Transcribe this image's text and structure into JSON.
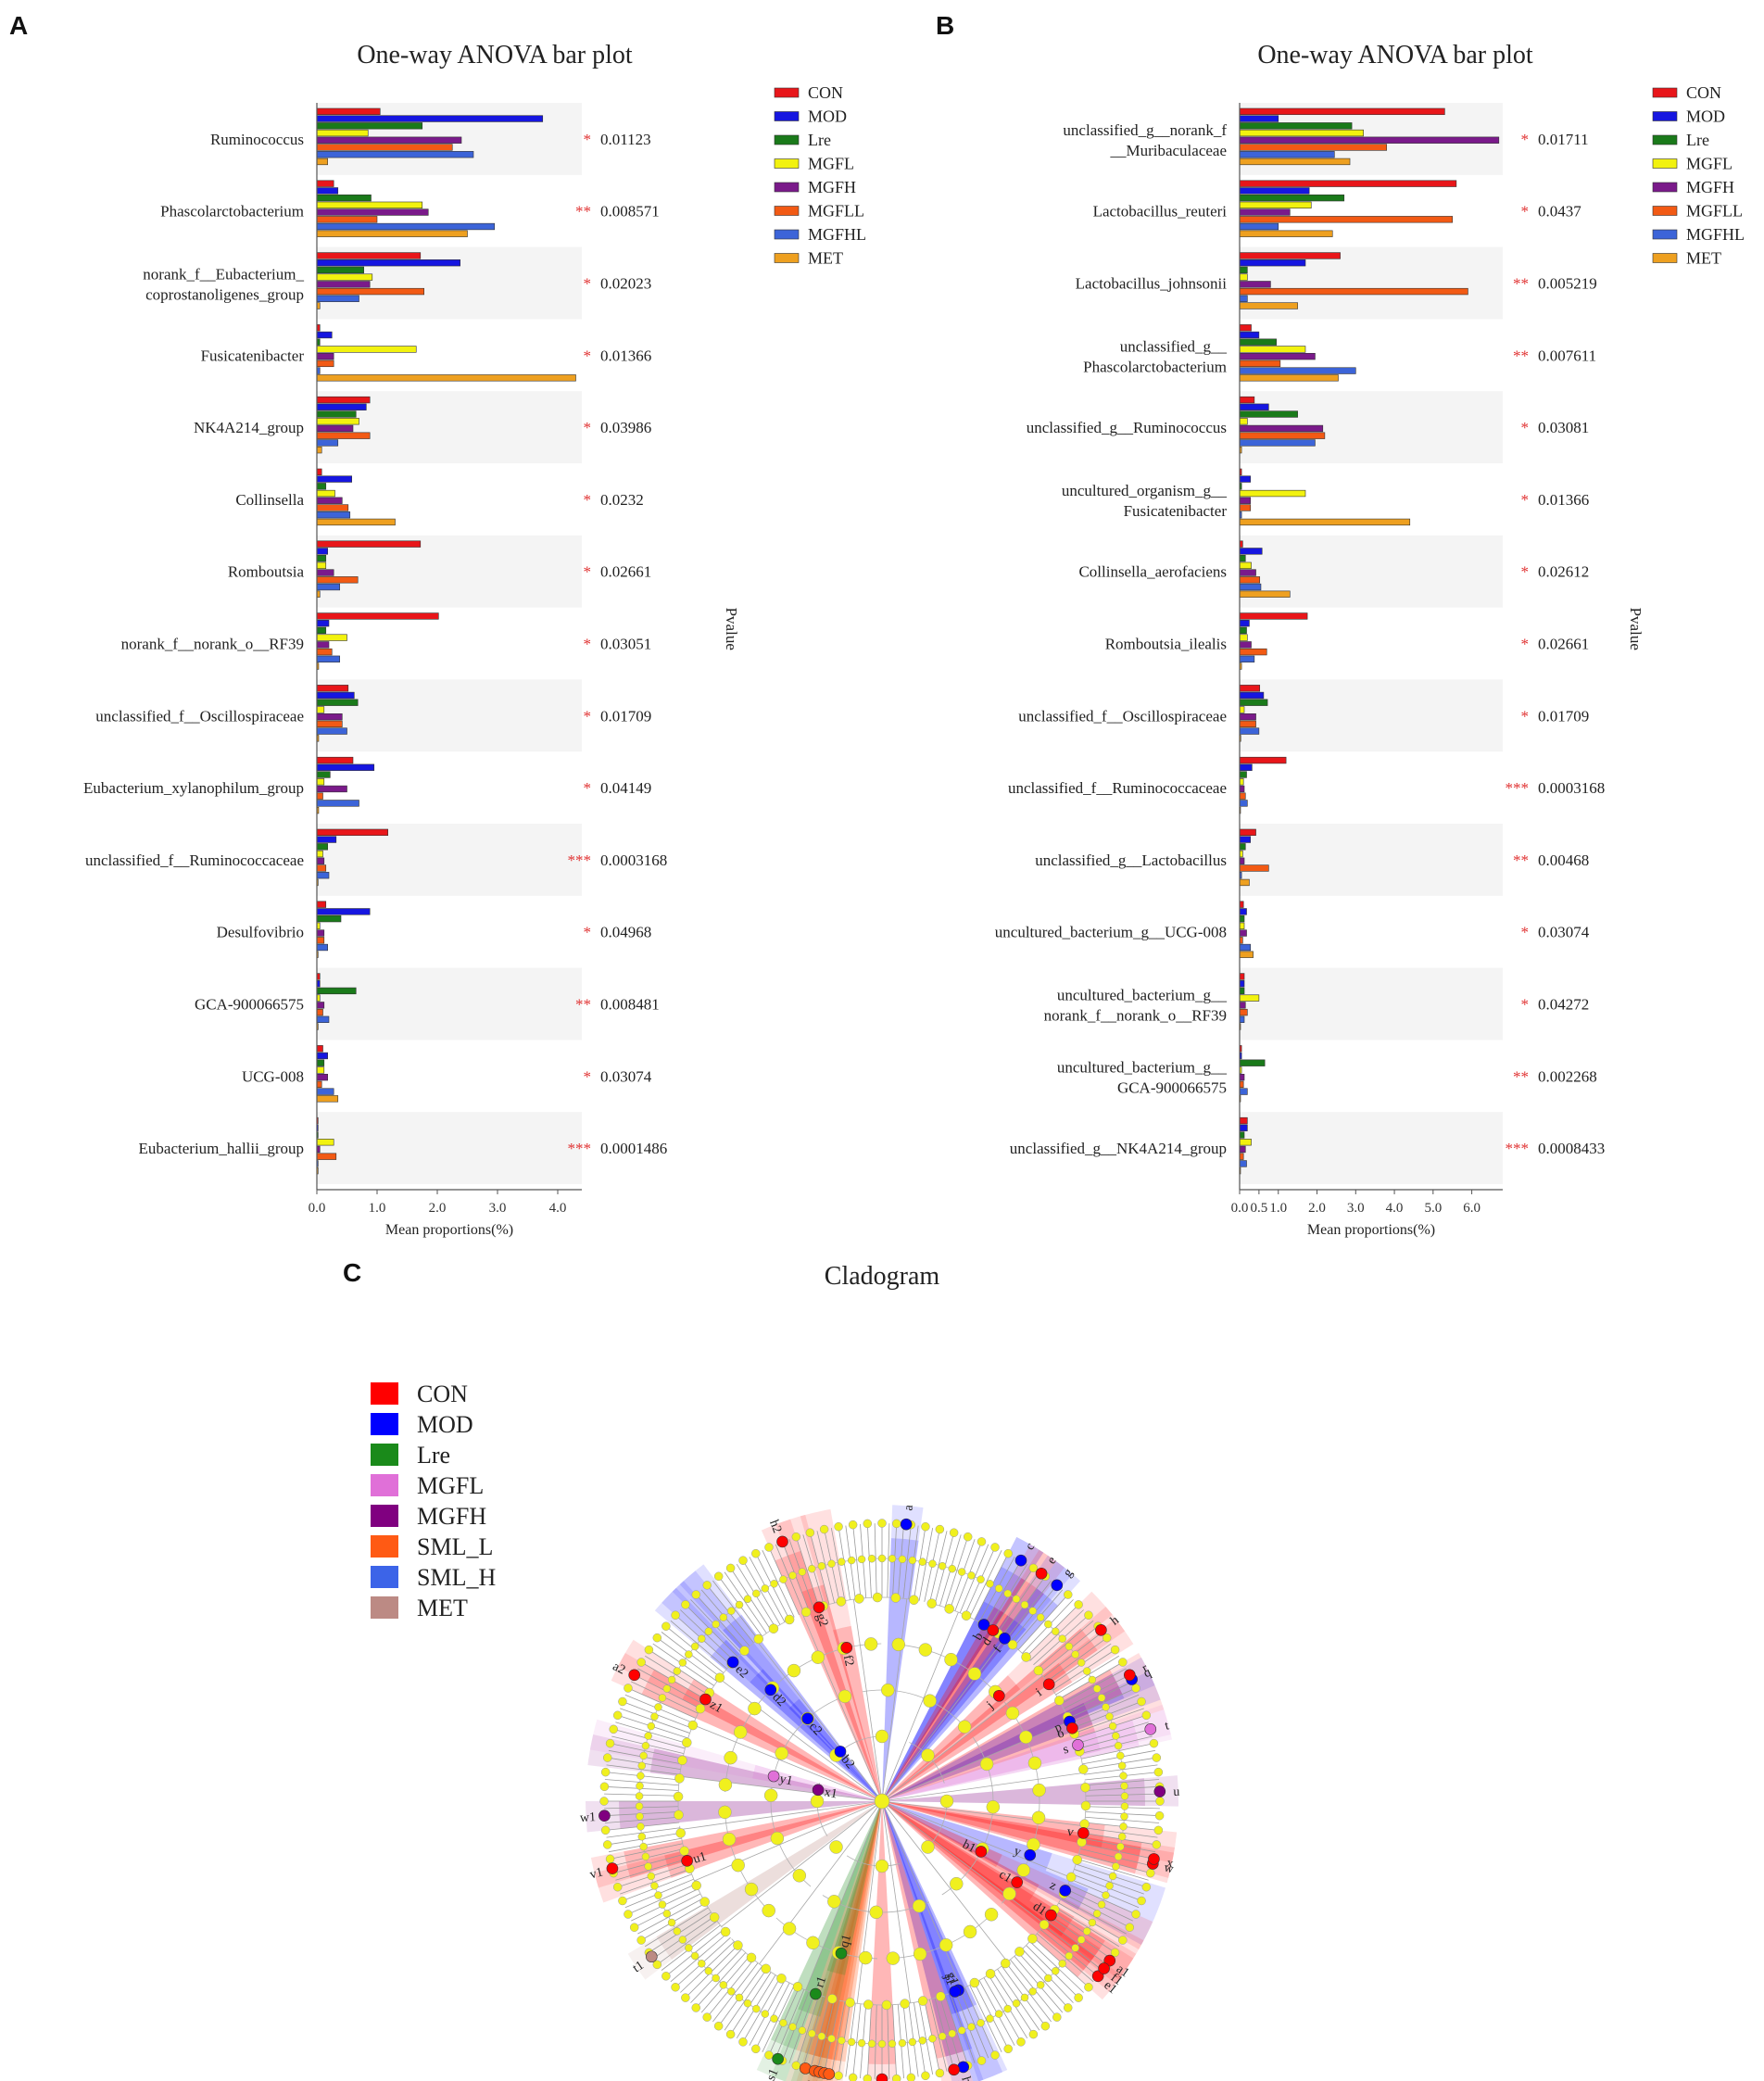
{
  "panel_labels": {
    "a": "A",
    "b": "B",
    "c": "C"
  },
  "legend_label": "Pvalue",
  "chart_data": [
    {
      "type": "bar",
      "orientation": "horizontal",
      "title": "One-way ANOVA bar plot",
      "xlabel": "Mean proportions(%)",
      "ylabel": "Pvalue",
      "xlim": [
        0,
        4.4
      ],
      "xticks": [
        0,
        1,
        2,
        3,
        4
      ],
      "xtick_labels": [
        "0.0",
        "1.0",
        "2.0",
        "3.0",
        "4.0"
      ],
      "legend_position": "top-right",
      "series_names": [
        "CON",
        "MOD",
        "Lre",
        "MGFL",
        "MGFH",
        "MGFLL",
        "MGFHL",
        "MET"
      ],
      "series_colors": [
        "#e8161a",
        "#1616e0",
        "#1a7a1a",
        "#f2f20f",
        "#7a1a8a",
        "#f25a14",
        "#3c64d8",
        "#eea020"
      ],
      "categories": [
        {
          "name": [
            "Ruminococcus"
          ],
          "values": [
            1.05,
            3.75,
            1.75,
            0.85,
            2.4,
            2.25,
            2.6,
            0.18
          ],
          "stars": "*",
          "pvalue": "0.01123"
        },
        {
          "name": [
            "Phascolarctobacterium"
          ],
          "values": [
            0.28,
            0.35,
            0.9,
            1.75,
            1.85,
            1.0,
            2.95,
            2.5
          ],
          "stars": "**",
          "pvalue": "0.008571"
        },
        {
          "name": [
            "norank_f__Eubacterium_",
            "coprostanoligenes_group"
          ],
          "values": [
            1.72,
            2.38,
            0.78,
            0.92,
            0.88,
            1.78,
            0.7,
            0.05
          ],
          "stars": "*",
          "pvalue": "0.02023"
        },
        {
          "name": [
            "Fusicatenibacter"
          ],
          "values": [
            0.05,
            0.25,
            0.05,
            1.65,
            0.28,
            0.28,
            0.05,
            4.3
          ],
          "stars": "*",
          "pvalue": "0.01366"
        },
        {
          "name": [
            "NK4A214_group"
          ],
          "values": [
            0.88,
            0.82,
            0.65,
            0.7,
            0.6,
            0.88,
            0.35,
            0.08
          ],
          "stars": "*",
          "pvalue": "0.03986"
        },
        {
          "name": [
            "Collinsella"
          ],
          "values": [
            0.08,
            0.58,
            0.15,
            0.3,
            0.42,
            0.52,
            0.55,
            1.3
          ],
          "stars": "*",
          "pvalue": "0.0232"
        },
        {
          "name": [
            "Romboutsia"
          ],
          "values": [
            1.72,
            0.18,
            0.15,
            0.15,
            0.28,
            0.68,
            0.38,
            0.05
          ],
          "stars": "*",
          "pvalue": "0.02661"
        },
        {
          "name": [
            "norank_f__norank_o__RF39"
          ],
          "values": [
            2.02,
            0.2,
            0.15,
            0.5,
            0.2,
            0.25,
            0.38,
            0.03
          ],
          "stars": "*",
          "pvalue": "0.03051"
        },
        {
          "name": [
            "unclassified_f__Oscillospiraceae"
          ],
          "values": [
            0.52,
            0.62,
            0.68,
            0.12,
            0.42,
            0.42,
            0.5,
            0.03
          ],
          "stars": "*",
          "pvalue": "0.01709"
        },
        {
          "name": [
            "Eubacterium_xylanophilum_group"
          ],
          "values": [
            0.6,
            0.95,
            0.22,
            0.12,
            0.5,
            0.1,
            0.7,
            0.03
          ],
          "stars": "*",
          "pvalue": "0.04149"
        },
        {
          "name": [
            "unclassified_f__Ruminococcaceae"
          ],
          "values": [
            1.18,
            0.32,
            0.18,
            0.1,
            0.12,
            0.15,
            0.2,
            0.02
          ],
          "stars": "***",
          "pvalue": "0.0003168"
        },
        {
          "name": [
            "Desulfovibrio"
          ],
          "values": [
            0.15,
            0.88,
            0.4,
            0.05,
            0.12,
            0.12,
            0.18,
            0.02
          ],
          "stars": "*",
          "pvalue": "0.04968"
        },
        {
          "name": [
            "GCA-900066575"
          ],
          "values": [
            0.05,
            0.05,
            0.65,
            0.05,
            0.12,
            0.1,
            0.2,
            0.02
          ],
          "stars": "**",
          "pvalue": "0.008481"
        },
        {
          "name": [
            "UCG-008"
          ],
          "values": [
            0.1,
            0.18,
            0.12,
            0.12,
            0.18,
            0.08,
            0.28,
            0.35
          ],
          "stars": "*",
          "pvalue": "0.03074"
        },
        {
          "name": [
            "Eubacterium_hallii_group"
          ],
          "values": [
            0.02,
            0.02,
            0.02,
            0.28,
            0.05,
            0.32,
            0.02,
            0.02
          ],
          "stars": "***",
          "pvalue": "0.0001486"
        }
      ]
    },
    {
      "type": "bar",
      "orientation": "horizontal",
      "title": "One-way ANOVA bar plot",
      "xlabel": "Mean proportions(%)",
      "ylabel": "Pvalue",
      "xlim": [
        0,
        6.8
      ],
      "xticks": [
        0,
        0.5,
        1,
        2,
        3,
        4,
        5,
        6
      ],
      "xtick_labels": [
        "0.0",
        "0.5",
        "1.0",
        "2.0",
        "3.0",
        "4.0",
        "5.0",
        "6.0"
      ],
      "legend_position": "top-right",
      "series_names": [
        "CON",
        "MOD",
        "Lre",
        "MGFL",
        "MGFH",
        "MGFLL",
        "MGFHL",
        "MET"
      ],
      "series_colors": [
        "#e8161a",
        "#1616e0",
        "#1a7a1a",
        "#f2f20f",
        "#7a1a8a",
        "#f25a14",
        "#3c64d8",
        "#eea020"
      ],
      "categories": [
        {
          "name": [
            "unclassified_g__norank_f",
            "__Muribaculaceae"
          ],
          "values": [
            5.3,
            1.0,
            2.9,
            3.2,
            6.7,
            3.8,
            2.45,
            2.85
          ],
          "stars": "*",
          "pvalue": "0.01711"
        },
        {
          "name": [
            "Lactobacillus_reuteri"
          ],
          "values": [
            5.6,
            1.8,
            2.7,
            1.85,
            1.3,
            5.5,
            1.0,
            2.4
          ],
          "stars": "*",
          "pvalue": "0.0437"
        },
        {
          "name": [
            "Lactobacillus_johnsonii"
          ],
          "values": [
            2.6,
            1.7,
            0.2,
            0.2,
            0.8,
            5.9,
            0.2,
            1.5
          ],
          "stars": "**",
          "pvalue": "0.005219"
        },
        {
          "name": [
            "unclassified_g__",
            "Phascolarctobacterium"
          ],
          "values": [
            0.3,
            0.5,
            0.95,
            1.7,
            1.95,
            1.05,
            3.0,
            2.55
          ],
          "stars": "**",
          "pvalue": "0.007611"
        },
        {
          "name": [
            "unclassified_g__Ruminococcus"
          ],
          "values": [
            0.38,
            0.75,
            1.5,
            0.2,
            2.15,
            2.2,
            1.95,
            0.05
          ],
          "stars": "*",
          "pvalue": "0.03081"
        },
        {
          "name": [
            "uncultured_organism_g__",
            "Fusicatenibacter"
          ],
          "values": [
            0.05,
            0.28,
            0.05,
            1.7,
            0.28,
            0.28,
            0.05,
            4.4
          ],
          "stars": "*",
          "pvalue": "0.01366"
        },
        {
          "name": [
            "Collinsella_aerofaciens"
          ],
          "values": [
            0.08,
            0.58,
            0.15,
            0.3,
            0.42,
            0.52,
            0.55,
            1.3
          ],
          "stars": "*",
          "pvalue": "0.02612"
        },
        {
          "name": [
            "Romboutsia_ilealis"
          ],
          "values": [
            1.75,
            0.25,
            0.18,
            0.2,
            0.3,
            0.7,
            0.38,
            0.05
          ],
          "stars": "*",
          "pvalue": "0.02661"
        },
        {
          "name": [
            "unclassified_f__Oscillospiraceae"
          ],
          "values": [
            0.52,
            0.62,
            0.72,
            0.12,
            0.42,
            0.42,
            0.5,
            0.03
          ],
          "stars": "*",
          "pvalue": "0.01709"
        },
        {
          "name": [
            "unclassified_f__Ruminococcaceae"
          ],
          "values": [
            1.2,
            0.32,
            0.18,
            0.1,
            0.12,
            0.15,
            0.2,
            0.02
          ],
          "stars": "***",
          "pvalue": "0.0003168"
        },
        {
          "name": [
            "unclassified_g__Lactobacillus"
          ],
          "values": [
            0.42,
            0.28,
            0.15,
            0.08,
            0.12,
            0.75,
            0.05,
            0.25
          ],
          "stars": "**",
          "pvalue": "0.00468"
        },
        {
          "name": [
            "uncultured_bacterium_g__UCG-008"
          ],
          "values": [
            0.1,
            0.18,
            0.12,
            0.12,
            0.18,
            0.08,
            0.28,
            0.35
          ],
          "stars": "*",
          "pvalue": "0.03074"
        },
        {
          "name": [
            "uncultured_bacterium_g__",
            "norank_f__norank_o__RF39"
          ],
          "values": [
            0.12,
            0.12,
            0.12,
            0.5,
            0.15,
            0.2,
            0.12,
            0.02
          ],
          "stars": "*",
          "pvalue": "0.04272"
        },
        {
          "name": [
            "uncultured_bacterium_g__",
            "GCA-900066575"
          ],
          "values": [
            0.05,
            0.05,
            0.65,
            0.05,
            0.12,
            0.1,
            0.2,
            0.02
          ],
          "stars": "**",
          "pvalue": "0.002268"
        },
        {
          "name": [
            "unclassified_g__NK4A214_group"
          ],
          "values": [
            0.2,
            0.2,
            0.12,
            0.3,
            0.15,
            0.1,
            0.18,
            0.02
          ],
          "stars": "***",
          "pvalue": "0.0008433"
        }
      ]
    }
  ],
  "cladogram": {
    "title": "Cladogram",
    "legend": [
      {
        "label": "CON",
        "color": "#ff0000"
      },
      {
        "label": "MOD",
        "color": "#0000ff"
      },
      {
        "label": "Lre",
        "color": "#1a8a1a"
      },
      {
        "label": "MGFL",
        "color": "#e070d8"
      },
      {
        "label": "MGFH",
        "color": "#800080"
      },
      {
        "label": "SML_L",
        "color": "#ff5a14"
      },
      {
        "label": "SML_H",
        "color": "#3c64e8"
      },
      {
        "label": "MET",
        "color": "#bc8a84"
      }
    ],
    "node_color": "#f0f01e",
    "highlights": [
      {
        "label": "a",
        "angle": 5,
        "depth": 4,
        "group": "MOD"
      },
      {
        "label": "b",
        "angle": 30,
        "depth": 3,
        "group": "MOD"
      },
      {
        "label": "c",
        "angle": 30,
        "depth": 4,
        "group": "MOD"
      },
      {
        "label": "d",
        "angle": 33,
        "depth": 3,
        "group": "CON"
      },
      {
        "label": "e",
        "angle": 35,
        "depth": 4,
        "group": "CON"
      },
      {
        "label": "f",
        "angle": 37,
        "depth": 3,
        "group": "MOD"
      },
      {
        "label": "g",
        "angle": 39,
        "depth": 4,
        "group": "MOD"
      },
      {
        "label": "h",
        "angle": 52,
        "depth": 4,
        "group": "CON"
      },
      {
        "label": "i",
        "angle": 55,
        "depth": 3,
        "group": "CON"
      },
      {
        "label": "j",
        "angle": 48,
        "depth": 2,
        "group": "CON"
      },
      {
        "label": "q",
        "angle": 64,
        "depth": 4,
        "group": "MOD"
      },
      {
        "label": "p",
        "angle": 67,
        "depth": 3,
        "group": "MOD"
      },
      {
        "label": "o",
        "angle": 69,
        "depth": 3,
        "group": "CON"
      },
      {
        "label": "r",
        "angle": 63,
        "depth": 4,
        "group": "CON"
      },
      {
        "label": "t",
        "angle": 75,
        "depth": 4,
        "group": "MGFL"
      },
      {
        "label": "s",
        "angle": 74,
        "depth": 3,
        "group": "MGFL"
      },
      {
        "label": "u",
        "angle": 88,
        "depth": 4,
        "group": "MGFH"
      },
      {
        "label": "v",
        "angle": 99,
        "depth": 3,
        "group": "CON"
      },
      {
        "label": "w",
        "angle": 103,
        "depth": 4,
        "group": "CON"
      },
      {
        "label": "x",
        "angle": 102,
        "depth": 4,
        "group": "CON"
      },
      {
        "label": "y",
        "angle": 110,
        "depth": 2,
        "group": "MOD"
      },
      {
        "label": "z",
        "angle": 116,
        "depth": 3,
        "group": "MOD"
      },
      {
        "label": "a1",
        "angle": 125,
        "depth": 4,
        "group": "CON"
      },
      {
        "label": "b1",
        "angle": 117,
        "depth": 1,
        "group": "CON"
      },
      {
        "label": "c1",
        "angle": 121,
        "depth": 2,
        "group": "CON"
      },
      {
        "label": "d1",
        "angle": 124,
        "depth": 3,
        "group": "CON"
      },
      {
        "label": "e1",
        "angle": 129,
        "depth": 4,
        "group": "CON"
      },
      {
        "label": "f1",
        "angle": 127,
        "depth": 4,
        "group": "CON"
      },
      {
        "label": "g1",
        "angle": 158,
        "depth": 3,
        "group": "MOD"
      },
      {
        "label": "h1",
        "angle": 163,
        "depth": 4,
        "group": "MOD"
      },
      {
        "label": "i1",
        "angle": 165,
        "depth": 4,
        "group": "CON"
      },
      {
        "label": "j1",
        "angle": 159,
        "depth": 3,
        "group": "MOD"
      },
      {
        "label": "k1",
        "angle": 180,
        "depth": 4,
        "group": "CON"
      },
      {
        "label": "l1",
        "angle": 196,
        "depth": 4,
        "group": "SML_L"
      },
      {
        "label": "m1",
        "angle": 194,
        "depth": 4,
        "group": "SML_L"
      },
      {
        "label": "n1",
        "angle": 193,
        "depth": 4,
        "group": "SML_L"
      },
      {
        "label": "o1",
        "angle": 192,
        "depth": 4,
        "group": "SML_L"
      },
      {
        "label": "p1",
        "angle": 191,
        "depth": 4,
        "group": "SML_L"
      },
      {
        "label": "q1",
        "angle": 195,
        "depth": 2,
        "group": "Lre"
      },
      {
        "label": "r1",
        "angle": 199,
        "depth": 3,
        "group": "Lre"
      },
      {
        "label": "s1",
        "angle": 202,
        "depth": 4,
        "group": "Lre"
      },
      {
        "label": "t1",
        "angle": 236,
        "depth": 4,
        "group": "MET"
      },
      {
        "label": "u1",
        "angle": 253,
        "depth": 3,
        "group": "CON"
      },
      {
        "label": "v1",
        "angle": 256,
        "depth": 4,
        "group": "CON"
      },
      {
        "label": "w1",
        "angle": 267,
        "depth": 4,
        "group": "MGFH"
      },
      {
        "label": "x1",
        "angle": 280,
        "depth": 0,
        "group": "MGFH"
      },
      {
        "label": "y1",
        "angle": 283,
        "depth": 1,
        "group": "MGFL"
      },
      {
        "label": "z1",
        "angle": 300,
        "depth": 3,
        "group": "CON"
      },
      {
        "label": "a2",
        "angle": 297,
        "depth": 4,
        "group": "CON"
      },
      {
        "label": "b2",
        "angle": 320,
        "depth": 0,
        "group": "MOD"
      },
      {
        "label": "c2",
        "angle": 318,
        "depth": 1,
        "group": "MOD"
      },
      {
        "label": "d2",
        "angle": 315,
        "depth": 2,
        "group": "MOD"
      },
      {
        "label": "e2",
        "angle": 313,
        "depth": 3,
        "group": "MOD"
      },
      {
        "label": "f2",
        "angle": 347,
        "depth": 2,
        "group": "CON"
      },
      {
        "label": "g2",
        "angle": 342,
        "depth": 3,
        "group": "CON"
      },
      {
        "label": "h2",
        "angle": 339,
        "depth": 4,
        "group": "CON"
      }
    ]
  }
}
